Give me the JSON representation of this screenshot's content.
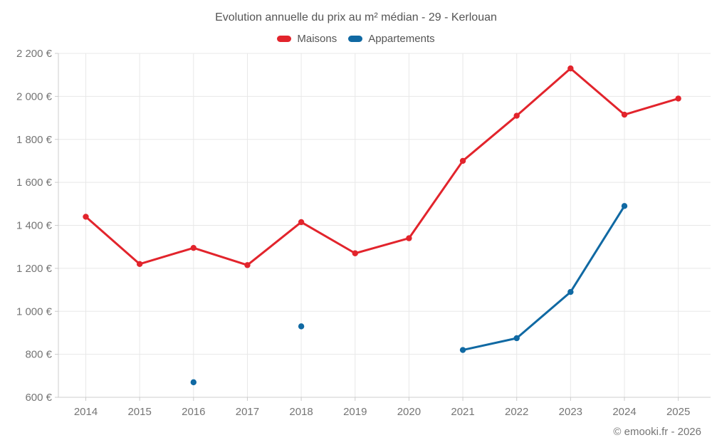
{
  "footer": {
    "copyright": "© emooki.fr - 2026"
  },
  "colors": {
    "maisons": "#e2242c",
    "appartements": "#1069a3",
    "grid": "#e8e8e8",
    "axis": "#cccccc",
    "title_text": "#555555",
    "axis_text": "#757575",
    "footer_text": "#757575"
  },
  "chart_data": {
    "type": "line",
    "title": "Evolution annuelle du prix au m² médian - 29 - Kerlouan",
    "xlabel": "",
    "ylabel": "",
    "categories": [
      "2014",
      "2015",
      "2016",
      "2017",
      "2018",
      "2019",
      "2020",
      "2021",
      "2022",
      "2023",
      "2024",
      "2025"
    ],
    "series": [
      {
        "name": "Maisons",
        "color": "#e2242c",
        "values": [
          1440,
          1220,
          1295,
          1215,
          1415,
          1270,
          1340,
          1700,
          1910,
          2130,
          1915,
          1990
        ]
      },
      {
        "name": "Appartements",
        "color": "#1069a3",
        "values": [
          null,
          null,
          670,
          null,
          930,
          null,
          null,
          820,
          875,
          1090,
          1490,
          null
        ]
      }
    ],
    "ylim": [
      600,
      2200
    ],
    "ytick_step": 200,
    "ytick_labels": [
      "600 €",
      "800 €",
      "1 000 €",
      "1 200 €",
      "1 400 €",
      "1 600 €",
      "1 800 €",
      "2 000 €",
      "2 200 €"
    ],
    "grid": true,
    "legend_position": "top",
    "marker": "circle"
  }
}
